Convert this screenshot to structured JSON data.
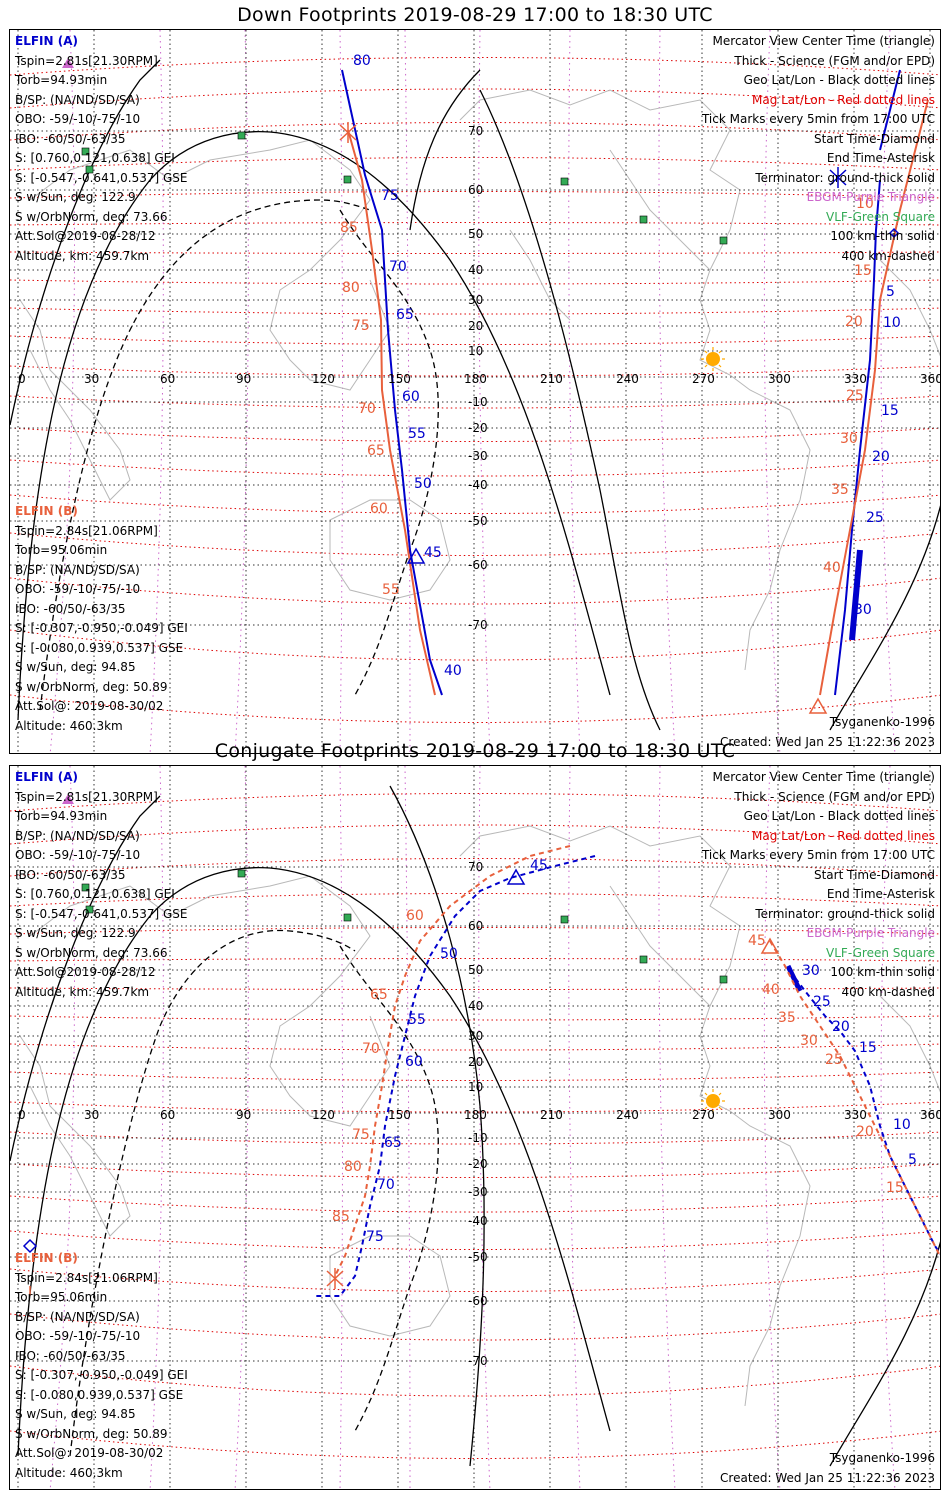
{
  "panels": [
    {
      "title": "Down Footprints 2019-08-29 17:00 to 18:30 UTC",
      "elfin_a": {
        "header": "ELFIN (A)",
        "lines": [
          "Tspin=2.81s[21.30RPM]",
          "Torb=94.93min",
          "B/SP: (NA/ND/SD/SA)",
          "OBO: -59/-10/-75/-10",
          "IBO: -60/50/-63/35",
          "S: [0.760,0.121,0.638] GEI",
          "S: [-0.547,-0.641,0.537] GSE",
          "S w/Sun, deg: 122.9",
          "S w/OrbNorm, deg: 73.66",
          "Att.Sol@2019-08-28/12",
          "Altitude, km: 459.7km"
        ]
      },
      "elfin_b": {
        "header": "ELFIN (B)",
        "lines": [
          "Tspin=2.84s[21.06RPM]",
          "Torb=95.06min",
          "B/SP: (NA/ND/SD/SA)",
          "OBO: -59/-10/-75/-10",
          "IBO: -60/50/-63/35",
          "S: [-0.307,-0.950,-0.049] GEI",
          "S: [-0.080,0.939,0.537] GSE",
          "S w/Sun, deg: 94.85",
          "S w/OrbNorm, deg: 50.89",
          "Att.Sol@: 2019-08-30/02",
          "Altitude: 460.3km"
        ]
      },
      "legend": [
        "Mercator View Center Time (triangle)",
        "Thick - Science (FGM and/or EPD)",
        "Geo Lat/Lon - Black dotted lines",
        "Mag Lat/Lon - Red dotted lines",
        "Tick Marks every 5min from 17:00 UTC",
        "Start Time-Diamond",
        "End Time-Asterisk",
        "Terminator: ground-thick solid",
        "EBGM-Purple Triangle",
        "VLF-Green Square",
        "100 km-thin solid",
        "400 km-dashed"
      ],
      "model": "Tsyganenko-1996",
      "created": "Created: Wed Jan 25 11:22:36 2023",
      "ticks_a": [
        {
          "t": "80"
        },
        {
          "t": "75"
        },
        {
          "t": "70"
        },
        {
          "t": "65"
        },
        {
          "t": "60"
        },
        {
          "t": "55"
        },
        {
          "t": "50"
        },
        {
          "t": "45"
        },
        {
          "t": "40"
        },
        {
          "t": "5"
        },
        {
          "t": "10"
        },
        {
          "t": "15"
        },
        {
          "t": "20"
        },
        {
          "t": "25"
        },
        {
          "t": "30"
        }
      ],
      "ticks_b": [
        {
          "t": "85"
        },
        {
          "t": "80"
        },
        {
          "t": "75"
        },
        {
          "t": "70"
        },
        {
          "t": "65"
        },
        {
          "t": "60"
        },
        {
          "t": "55"
        },
        {
          "t": "10"
        },
        {
          "t": "15"
        },
        {
          "t": "20"
        },
        {
          "t": "25"
        },
        {
          "t": "30"
        },
        {
          "t": "35"
        },
        {
          "t": "40"
        }
      ]
    },
    {
      "title": "Conjugate Footprints 2019-08-29 17:00 to 18:30 UTC",
      "elfin_a": {
        "header": "ELFIN (A)",
        "lines": [
          "Tspin=2.81s[21.30RPM]",
          "Torb=94.93min",
          "B/SP: (NA/ND/SD/SA)",
          "OBO: -59/-10/-75/-10",
          "IBO: -60/50/-63/35",
          "S: [0.760,0.121,0.638] GEI",
          "S: [-0.547,-0.641,0.537] GSE",
          "S w/Sun, deg: 122.9",
          "S w/OrbNorm, deg: 73.66",
          "Att.Sol@2019-08-28/12",
          "Altitude, km: 459.7km"
        ]
      },
      "elfin_b": {
        "header": "ELFIN (B)",
        "lines": [
          "Tspin=2.84s[21.06RPM]",
          "Torb=95.06min",
          "B/SP: (NA/ND/SD/SA)",
          "OBO: -59/-10/-75/-10",
          "IBO: -60/50/-63/35",
          "S: [-0.307,-0.950,-0.049] GEI",
          "S: [-0.080,0.939,0.537] GSE",
          "S w/Sun, deg: 94.85",
          "S w/OrbNorm, deg: 50.89",
          "Att.Sol@: 2019-08-30/02",
          "Altitude: 460.3km"
        ]
      },
      "legend": [
        "Mercator View Center Time (triangle)",
        "Thick - Science (FGM and/or EPD)",
        "Geo Lat/Lon - Black dotted lines",
        "Mag Lat/Lon - Red dotted lines",
        "Tick Marks every 5min from 17:00 UTC",
        "Start Time-Diamond",
        "End Time-Asterisk",
        "Terminator: ground-thick solid",
        "EBGM-Purple Triangle",
        "VLF-Green Square",
        "100 km-thin solid",
        "400 km-dashed"
      ],
      "model": "Tsyganenko-1996",
      "created": "Created: Wed Jan 25 11:22:36 2023",
      "ticks_a": [
        {
          "t": "45"
        },
        {
          "t": "50"
        },
        {
          "t": "55"
        },
        {
          "t": "60"
        },
        {
          "t": "65"
        },
        {
          "t": "70"
        },
        {
          "t": "75"
        },
        {
          "t": "30"
        },
        {
          "t": "25"
        },
        {
          "t": "20"
        },
        {
          "t": "15"
        },
        {
          "t": "10"
        },
        {
          "t": "5"
        }
      ],
      "ticks_b": [
        {
          "t": "60"
        },
        {
          "t": "65"
        },
        {
          "t": "70"
        },
        {
          "t": "75"
        },
        {
          "t": "80"
        },
        {
          "t": "85"
        },
        {
          "t": "45"
        },
        {
          "t": "40"
        },
        {
          "t": "35"
        },
        {
          "t": "30"
        },
        {
          "t": "25"
        },
        {
          "t": "20"
        },
        {
          "t": "15"
        }
      ]
    }
  ],
  "lon_labels": [
    "0",
    "30",
    "60",
    "90",
    "120",
    "150",
    "180",
    "210",
    "240",
    "270",
    "300",
    "330",
    "360"
  ],
  "lat_labels": [
    "70",
    "60",
    "50",
    "40",
    "30",
    "20",
    "10",
    "-10",
    "-20",
    "-30",
    "-40",
    "-50",
    "-60",
    "-70"
  ],
  "colors": {
    "elfin_a": "#0000cc",
    "elfin_b": "#e8603c",
    "mag_grid": "#dd0000",
    "geo_grid": "#000000",
    "vlf": "#33aa55",
    "ebgm": "#cc66cc",
    "sun": "#ffaa00"
  }
}
